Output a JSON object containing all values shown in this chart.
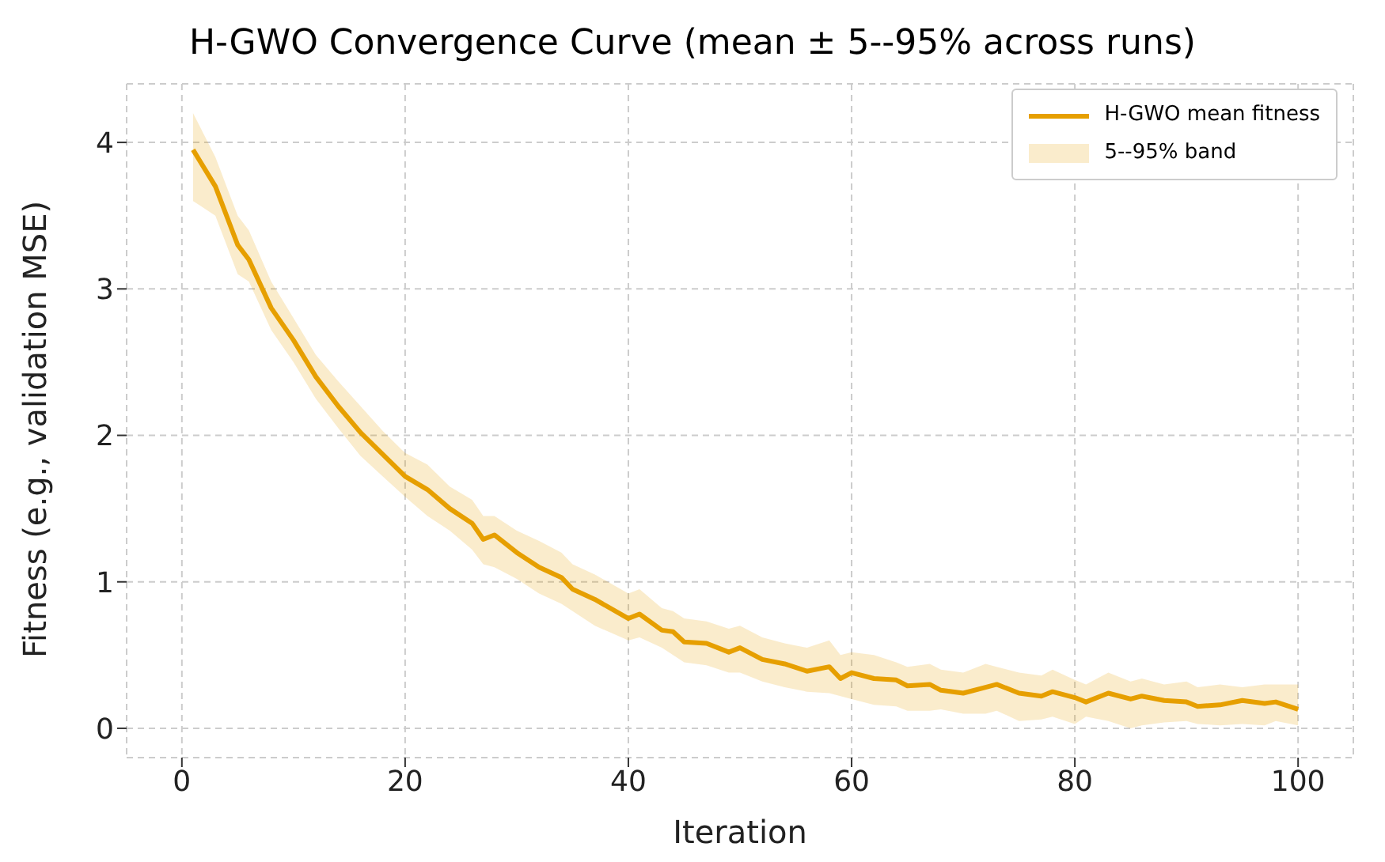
{
  "chart_data": {
    "type": "line",
    "title": "H-GWO Convergence Curve (mean ± 5--95% across runs)",
    "xlabel": "Iteration",
    "ylabel": "Fitness (e.g., validation MSE)",
    "annotations": [
      "5--95% band"
    ],
    "series": [
      {
        "name": "H-GWO mean fitness",
        "color": "#e69f00",
        "x": [
          1,
          3,
          5,
          6,
          8,
          10,
          12,
          14,
          16,
          18,
          20,
          22,
          24,
          26,
          27,
          28,
          30,
          32,
          34,
          35,
          37,
          40,
          41,
          43,
          44,
          45,
          47,
          49,
          50,
          52,
          54,
          56,
          58,
          59,
          60,
          62,
          64,
          65,
          67,
          68,
          70,
          72,
          73,
          75,
          77,
          78,
          80,
          81,
          83,
          85,
          86,
          88,
          90,
          91,
          93,
          95,
          97,
          98,
          100
        ],
        "values": [
          3.95,
          3.7,
          3.3,
          3.2,
          2.87,
          2.65,
          2.4,
          2.2,
          2.02,
          1.87,
          1.72,
          1.63,
          1.5,
          1.4,
          1.29,
          1.32,
          1.2,
          1.1,
          1.03,
          0.95,
          0.88,
          0.75,
          0.78,
          0.67,
          0.66,
          0.59,
          0.58,
          0.52,
          0.55,
          0.47,
          0.44,
          0.39,
          0.42,
          0.34,
          0.38,
          0.34,
          0.33,
          0.29,
          0.3,
          0.26,
          0.24,
          0.28,
          0.3,
          0.24,
          0.22,
          0.25,
          0.21,
          0.18,
          0.24,
          0.2,
          0.22,
          0.19,
          0.18,
          0.15,
          0.16,
          0.19,
          0.17,
          0.18,
          0.13
        ],
        "lower": [
          3.6,
          3.5,
          3.1,
          3.05,
          2.72,
          2.5,
          2.25,
          2.05,
          1.86,
          1.72,
          1.58,
          1.45,
          1.35,
          1.22,
          1.12,
          1.1,
          1.02,
          0.92,
          0.85,
          0.8,
          0.7,
          0.6,
          0.62,
          0.55,
          0.5,
          0.45,
          0.43,
          0.38,
          0.38,
          0.32,
          0.28,
          0.25,
          0.24,
          0.22,
          0.2,
          0.16,
          0.15,
          0.12,
          0.12,
          0.13,
          0.1,
          0.1,
          0.12,
          0.05,
          0.06,
          0.08,
          0.03,
          0.08,
          0.05,
          0.0,
          0.02,
          0.04,
          0.05,
          0.03,
          0.02,
          0.03,
          0.02,
          0.05,
          0.02
        ],
        "upper": [
          4.2,
          3.9,
          3.5,
          3.4,
          3.05,
          2.8,
          2.55,
          2.37,
          2.2,
          2.03,
          1.88,
          1.8,
          1.65,
          1.56,
          1.45,
          1.45,
          1.35,
          1.28,
          1.2,
          1.12,
          1.05,
          0.92,
          0.95,
          0.82,
          0.8,
          0.75,
          0.73,
          0.68,
          0.7,
          0.62,
          0.58,
          0.55,
          0.6,
          0.5,
          0.52,
          0.5,
          0.45,
          0.42,
          0.44,
          0.4,
          0.38,
          0.44,
          0.42,
          0.38,
          0.36,
          0.4,
          0.33,
          0.3,
          0.38,
          0.32,
          0.34,
          0.3,
          0.32,
          0.28,
          0.3,
          0.28,
          0.3,
          0.3,
          0.3
        ]
      }
    ],
    "xlim": [
      -4.95,
      104.95
    ],
    "xticks": [
      0,
      20,
      40,
      60,
      80,
      100
    ],
    "ylim": [
      -0.2,
      4.4
    ],
    "yticks": [
      0,
      1,
      2,
      3,
      4
    ],
    "grid": true,
    "legend": "top right",
    "marker": "none",
    "line_style": "solid"
  }
}
